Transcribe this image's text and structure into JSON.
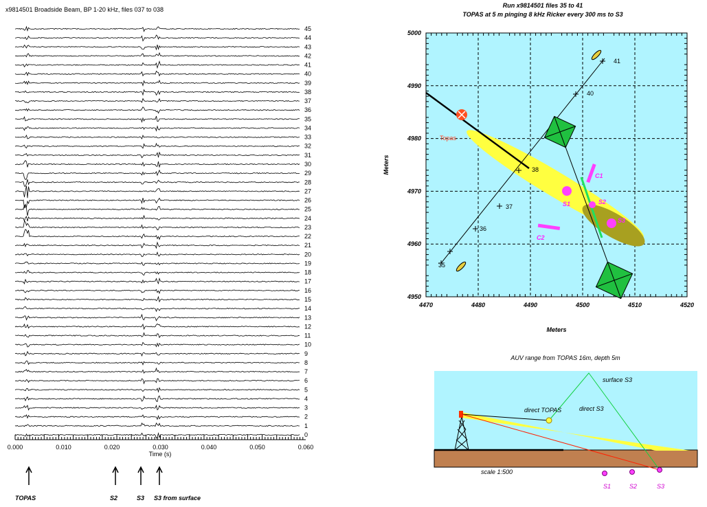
{
  "left_panel": {
    "title": "x9814501 Broadside Beam, BP 1-20 kHz, files 037 to 038",
    "trace_labels": [
      "0",
      "1",
      "2",
      "3",
      "4",
      "5",
      "6",
      "7",
      "8",
      "9",
      "10",
      "11",
      "12",
      "13",
      "14",
      "15",
      "16",
      "17",
      "18",
      "19",
      "20",
      "21",
      "22",
      "23",
      "24",
      "25",
      "26",
      "27",
      "28",
      "29",
      "30",
      "31",
      "32",
      "33",
      "34",
      "35",
      "36",
      "37",
      "38",
      "39",
      "40",
      "41",
      "42",
      "43",
      "44",
      "45"
    ],
    "xticks": [
      "0.000",
      "0.010",
      "0.020",
      "0.030",
      "0.040",
      "0.050",
      "0.060"
    ],
    "xlabel": "Time (s)",
    "arrows": [
      "TOPAS",
      "S2",
      "S3",
      "S3 from surface"
    ]
  },
  "map": {
    "title": "Run x9814501 files 35 to 41",
    "subtitle": "TOPAS at 5 m pinging 8 kHz Ricker every 300 ms to S3",
    "xlabel": "Meters",
    "ylabel": "Meters",
    "xticks": [
      "4470",
      "4480",
      "4490",
      "4500",
      "4510",
      "4520"
    ],
    "yticks": [
      "4950",
      "4960",
      "4970",
      "4980",
      "4990",
      "5000"
    ],
    "source": "Topas",
    "track": [
      "35",
      "36",
      "37",
      "38",
      "40",
      "41"
    ],
    "targets": [
      "S1",
      "S2",
      "S3"
    ],
    "cables": [
      "C1",
      "C2"
    ]
  },
  "inset": {
    "title": "AUV range from TOPAS 16m, depth 5m",
    "direct_topas": "direct TOPAS",
    "surface_s3": "surface S3",
    "direct_s3": "direct S3",
    "targets": [
      "S1",
      "S2",
      "S3"
    ],
    "scale": "scale 1:500"
  }
}
